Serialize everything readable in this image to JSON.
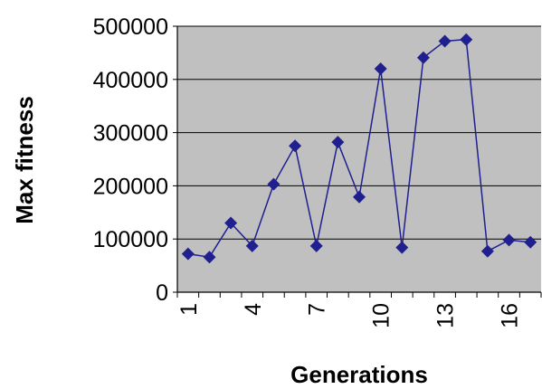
{
  "chart_data": {
    "type": "line",
    "xlabel": "Generations",
    "ylabel": "Max fitness",
    "x": [
      1,
      2,
      3,
      4,
      5,
      6,
      7,
      8,
      9,
      10,
      11,
      12,
      13,
      14,
      15,
      16,
      17
    ],
    "series": [
      {
        "values": [
          72000,
          66000,
          130000,
          87000,
          203000,
          275000,
          87000,
          282000,
          179000,
          420000,
          84000,
          441000,
          472000,
          475000,
          77000,
          98000,
          94000
        ],
        "color": "#1f1f8f"
      }
    ],
    "ylim": [
      0,
      500000
    ],
    "yticks": [
      "0",
      "100000",
      "200000",
      "300000",
      "400000",
      "500000"
    ],
    "xticks": [
      "1",
      "4",
      "7",
      "10",
      "13",
      "16"
    ],
    "plot_background": "#c0c0c0",
    "grid": "horizontal"
  }
}
